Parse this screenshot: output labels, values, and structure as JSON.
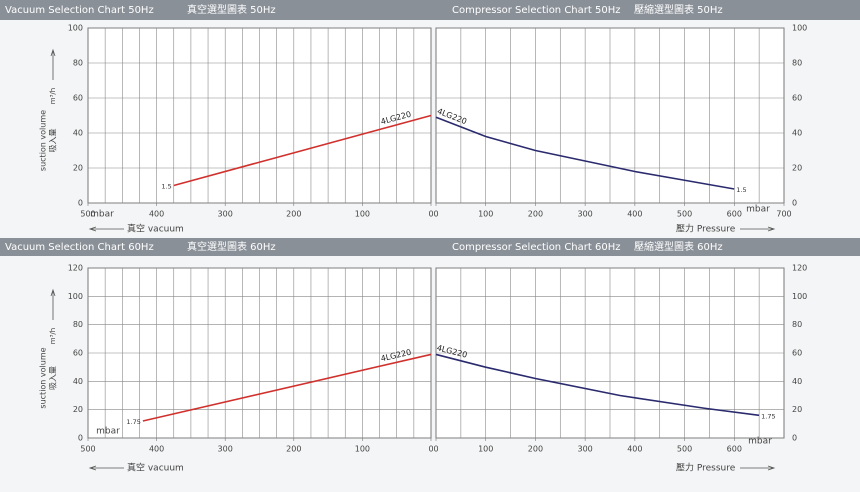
{
  "chart_data": [
    {
      "type": "line",
      "title": "Vacuum Selection Chart 50Hz",
      "subtitle": "真空選型圖表 50Hz",
      "xlabel": "真空 vacuum",
      "xunit": "mbar",
      "ylabel": [
        "suction volume",
        "吸入量"
      ],
      "yunit": "m³/h",
      "xlim": [
        500,
        0
      ],
      "xticks": [
        500,
        400,
        300,
        200,
        100,
        0
      ],
      "xgrid": [
        475,
        450,
        425,
        400,
        375,
        350,
        325,
        300,
        275,
        250,
        225,
        200,
        175,
        150,
        125,
        100,
        75,
        50,
        25
      ],
      "ylim": [
        0,
        100
      ],
      "yticks": [
        0,
        20,
        40,
        60,
        80,
        100
      ],
      "y_axis_side": "left",
      "series": [
        {
          "name": "4LG220",
          "color": "#d0312d",
          "x": [
            375,
            0
          ],
          "values": [
            10,
            50
          ]
        }
      ],
      "annotations": [
        {
          "text": "1.5",
          "x": 375,
          "y": 10
        }
      ]
    },
    {
      "type": "line",
      "title": "Compressor Selection Chart 50Hz",
      "subtitle": "壓縮選型圖表 50Hz",
      "xlabel": "壓力 Pressure",
      "xunit": "mbar",
      "xlim": [
        0,
        700
      ],
      "xticks": [
        0,
        100,
        200,
        300,
        400,
        500,
        600,
        700
      ],
      "xgrid": [
        50,
        100,
        150,
        200,
        250,
        300,
        350,
        400,
        450,
        500,
        550,
        600,
        650
      ],
      "ylim": [
        0,
        100
      ],
      "yticks": [
        0,
        20,
        40,
        60,
        80,
        100
      ],
      "y_axis_side": "right",
      "series": [
        {
          "name": "4LG220",
          "color": "#2a2a6e",
          "x": [
            0,
            100,
            200,
            300,
            400,
            500,
            600
          ],
          "values": [
            49,
            38,
            30,
            24,
            18,
            13,
            8
          ]
        }
      ],
      "annotations": [
        {
          "text": "1.5",
          "x": 600,
          "y": 8
        }
      ]
    },
    {
      "type": "line",
      "title": "Vacuum Selection Chart 60Hz",
      "subtitle": "真空選型圖表 60Hz",
      "xlabel": "真空 vacuum",
      "xunit": "mbar",
      "ylabel": [
        "suction volume",
        "吸入量"
      ],
      "yunit": "m³/h",
      "xlim": [
        500,
        0
      ],
      "xticks": [
        500,
        400,
        300,
        200,
        100,
        0
      ],
      "xgrid": [
        475,
        450,
        425,
        400,
        375,
        350,
        325,
        300,
        275,
        250,
        225,
        200,
        175,
        150,
        125,
        100,
        75,
        50,
        25
      ],
      "ylim": [
        0,
        120
      ],
      "yticks": [
        0,
        20,
        40,
        60,
        80,
        100,
        120
      ],
      "y_axis_side": "left",
      "series": [
        {
          "name": "4LG220",
          "color": "#d0312d",
          "x": [
            420,
            0
          ],
          "values": [
            12,
            59
          ]
        }
      ],
      "annotations": [
        {
          "text": "1.75",
          "x": 420,
          "y": 12
        }
      ]
    },
    {
      "type": "line",
      "title": "Compressor Selection Chart 60Hz",
      "subtitle": "壓縮選型圖表 60Hz",
      "xlabel": "壓力 Pressure",
      "xunit": "mbar",
      "xlim": [
        0,
        700
      ],
      "xticks": [
        0,
        100,
        200,
        300,
        400,
        500,
        600
      ],
      "xgrid": [
        50,
        100,
        150,
        200,
        250,
        300,
        350,
        400,
        450,
        500,
        550,
        600,
        650
      ],
      "ylim": [
        0,
        120
      ],
      "yticks": [
        0,
        20,
        40,
        60,
        80,
        100,
        120
      ],
      "y_axis_side": "right",
      "series": [
        {
          "name": "4LG220",
          "color": "#2a2a6e",
          "x": [
            0,
            100,
            200,
            370,
            540,
            650
          ],
          "values": [
            59,
            50,
            42,
            30,
            21,
            16
          ]
        }
      ],
      "annotations": [
        {
          "text": "1.75",
          "x": 650,
          "y": 16
        }
      ]
    }
  ]
}
